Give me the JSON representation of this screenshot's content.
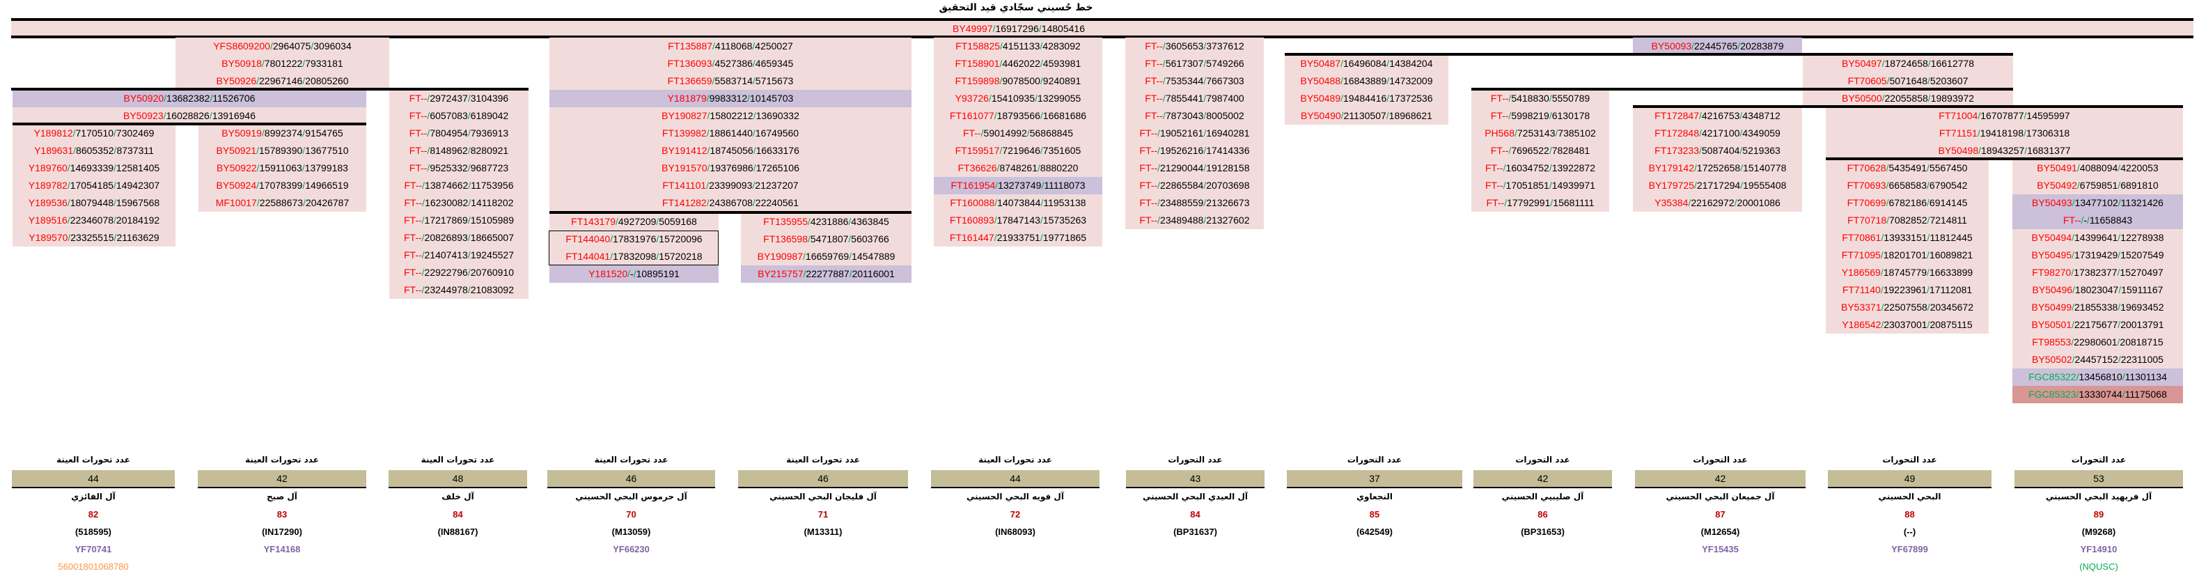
{
  "title": "خط حُسيني سجّادي قيد التحقيق",
  "top_row": {
    "snp": "BY49997",
    "pos1": "16917296",
    "pos2": "14805416"
  },
  "colors": {
    "pink": "#f2dcdb",
    "purple": "#ccc0da",
    "darkred": "#d99694",
    "snp_red": "#ff0000",
    "slash_green": "#00b050",
    "tan": "#c4bd97"
  },
  "blocks": [
    {
      "id": "A",
      "rows": [
        {
          "t": "YFS8609200/2964075/3096034"
        },
        {
          "t": "BY50918/7801222/7933181"
        },
        {
          "t": "BY50926/22967146/20805260"
        }
      ]
    },
    {
      "id": "B",
      "rows": [
        {
          "t": "BY50920/13682382/11526706",
          "bg": "purple"
        },
        {
          "t": "BY50923/16028826/13916946"
        }
      ]
    },
    {
      "id": "C",
      "rows": [
        {
          "t": "Y189812/7170510/7302469"
        },
        {
          "t": "Y189631/8605352/8737311"
        },
        {
          "t": "Y189760/14693339/12581405"
        },
        {
          "t": "Y189782/17054185/14942307"
        },
        {
          "t": "Y189536/18079448/15967568"
        },
        {
          "t": "Y189516/22346078/20184192"
        },
        {
          "t": "Y189570/23325515/21163629"
        }
      ]
    },
    {
      "id": "D",
      "rows": [
        {
          "t": "BY50919/8992374/9154765"
        },
        {
          "t": "BY50921/15789390/13677510"
        },
        {
          "t": "BY50922/15911063/13799183"
        },
        {
          "t": "BY50924/17078399/14966519"
        },
        {
          "t": "MF10017/22588673/20426787"
        }
      ]
    },
    {
      "id": "E",
      "rows": [
        {
          "t": "FT--/2972437/3104396"
        },
        {
          "t": "FT--/6057083/6189042"
        },
        {
          "t": "FT--/7804954/7936913"
        },
        {
          "t": "FT--/8148962/8280921"
        },
        {
          "t": "FT--/9525332/9687723"
        },
        {
          "t": "FT--/13874662/11753956"
        },
        {
          "t": "FT--/16230082/14118202"
        },
        {
          "t": "FT--/17217869/15105989"
        },
        {
          "t": "FT--/20826893/18665007"
        },
        {
          "t": "FT--/21407413/19245527"
        },
        {
          "t": "FT--/22922796/20760910"
        },
        {
          "t": "FT--/23244978/21083092"
        }
      ]
    },
    {
      "id": "F",
      "rows": [
        {
          "t": "FT135887/4118068/4250027"
        },
        {
          "t": "FT136093/4527386/4659345"
        },
        {
          "t": "FT136659/5583714/5715673"
        },
        {
          "t": "Y181879/9983312/10145703",
          "bg": "purple"
        },
        {
          "t": "BY190827/15802212/13690332"
        },
        {
          "t": "FT139982/18861440/16749560"
        },
        {
          "t": "BY191412/18745056/16633176"
        },
        {
          "t": "BY191570/19376986/17265106"
        },
        {
          "t": "FT141101/23399093/21237207"
        },
        {
          "t": "FT141282/24386708/22240561"
        }
      ]
    },
    {
      "id": "G",
      "rows": [
        {
          "t": "FT143179/4927209/5059168"
        },
        {
          "t": "FT144040/17831976/15720096"
        },
        {
          "t": "FT144041/17832098/15720218"
        },
        {
          "t": "Y181520/-/10895191",
          "bg": "purple"
        }
      ]
    },
    {
      "id": "H",
      "rows": [
        {
          "t": "FT135955/4231886/4363845"
        },
        {
          "t": "FT136598/5471807/5603766"
        },
        {
          "t": "BY190987/16659769/14547889"
        },
        {
          "t": "BY215757/22277887/20116001",
          "bg": "purple"
        }
      ]
    },
    {
      "id": "I",
      "rows": [
        {
          "t": "FT158825/4151133/4283092"
        },
        {
          "t": "FT158901/4462022/4593981"
        },
        {
          "t": "FT159898/9078500/9240891"
        },
        {
          "t": "Y93726/15410935/13299055"
        },
        {
          "t": "FT161077/18793566/16681686"
        },
        {
          "t": "FT--/59014992/56868845"
        },
        {
          "t": "FT159517/7219646/7351605"
        },
        {
          "t": "FT36626/8748261/8880220"
        },
        {
          "t": "FT161954/13273749/11118073",
          "bg": "purple"
        },
        {
          "t": "FT160088/14073844/11953138"
        },
        {
          "t": "FT160893/17847143/15735263"
        },
        {
          "t": "FT161447/21933751/19771865"
        }
      ]
    },
    {
      "id": "J",
      "rows": [
        {
          "t": "FT--/3605653/3737612"
        },
        {
          "t": "FT--/5617307/5749266"
        },
        {
          "t": "FT--/7535344/7667303"
        },
        {
          "t": "FT--/7855441/7987400"
        },
        {
          "t": "FT--/7873043/8005002"
        },
        {
          "t": "FT--/19052161/16940281"
        },
        {
          "t": "FT--/19526216/17414336"
        },
        {
          "t": "FT--/21290044/19128158"
        },
        {
          "t": "FT--/22865584/20703698"
        },
        {
          "t": "FT--/23488559/21326673"
        },
        {
          "t": "FT--/23489488/21327602"
        }
      ]
    },
    {
      "id": "K",
      "rows": [
        {
          "t": "BY50487/16496084/14384204"
        },
        {
          "t": "BY50488/16843889/14732009"
        },
        {
          "t": "BY50489/19484416/17372536"
        },
        {
          "t": "BY50490/21130507/18968621"
        }
      ]
    },
    {
      "id": "K2",
      "rows": [
        {
          "t": "BY50093/22445765/20283879",
          "bg": "purple"
        }
      ]
    },
    {
      "id": "L",
      "rows": [
        {
          "t": "FT--/5418830/5550789"
        },
        {
          "t": "FT--/5998219/6130178"
        },
        {
          "t": "PH568/7253143/7385102"
        },
        {
          "t": "FT--/7696522/7828481"
        },
        {
          "t": "FT--/16034752/13922872"
        },
        {
          "t": "FT--/17051851/14939971"
        },
        {
          "t": "FT--/17792991/15681111"
        }
      ]
    },
    {
      "id": "M",
      "rows": [
        {
          "t": "FT172847/4216753/4348712"
        },
        {
          "t": "FT172848/4217100/4349059"
        },
        {
          "t": "FT173233/5087404/5219363"
        },
        {
          "t": "BY179142/17252658/15140778"
        },
        {
          "t": "BY179725/21717294/19555408"
        },
        {
          "t": "Y35384/22162972/20001086"
        }
      ]
    },
    {
      "id": "N1",
      "rows": [
        {
          "t": "BY50497/18724658/16612778"
        },
        {
          "t": "FT70605/5071648/5203607"
        }
      ]
    },
    {
      "id": "N2",
      "rows": [
        {
          "t": "BY50500/22055858/19893972"
        }
      ]
    },
    {
      "id": "O",
      "rows": [
        {
          "t": "FT71004/16707877/14595997"
        },
        {
          "t": "FT71151/19418198/17306318"
        },
        {
          "t": "BY50498/18943257/16831377"
        }
      ]
    },
    {
      "id": "P",
      "rows": [
        {
          "t": "FT70628/5435491/5567450"
        },
        {
          "t": "FT70693/6658583/6790542"
        },
        {
          "t": "FT70699/6782186/6914145"
        },
        {
          "t": "FT70718/7082852/7214811"
        },
        {
          "t": "FT70861/13933151/11812445"
        },
        {
          "t": "FT71095/18201701/16089821"
        },
        {
          "t": "Y186569/18745779/16633899"
        },
        {
          "t": "FT71140/19223961/17112081"
        },
        {
          "t": "BY53371/22507558/20345672"
        },
        {
          "t": "Y186542/23037001/20875115"
        }
      ]
    },
    {
      "id": "Q",
      "rows": [
        {
          "t": "BY50491/4088094/4220053"
        },
        {
          "t": "BY50492/6759851/6891810"
        },
        {
          "t": "BY50493/13477102/11321426",
          "bg": "purple"
        },
        {
          "t": "FT--/-/11658843",
          "bg": "purple"
        },
        {
          "t": "BY50494/14399641/12278938"
        },
        {
          "t": "BY50495/17319429/15207549"
        },
        {
          "t": "FT98270/17382377/15270497"
        },
        {
          "t": "BY50496/18023047/15911167"
        },
        {
          "t": "BY50499/21855338/19693452"
        },
        {
          "t": "BY50501/22175677/20013791"
        },
        {
          "t": "FT98553/22980601/20818715"
        },
        {
          "t": "BY50502/24457152/22311005"
        },
        {
          "t": "FGC85322/13456810/11301134",
          "bg": "purple",
          "snp_color": "green"
        },
        {
          "t": "FGC85323/13330744/11175068",
          "bg": "darkred",
          "snp_color": "green"
        }
      ]
    }
  ],
  "groups": [
    {
      "label": "عدد تحورات العينة",
      "count": "44",
      "name": "آل الفائزي",
      "number": "82",
      "code": "(518595)",
      "yf": "YF70741",
      "extra": "56001801068780",
      "extra_color": "#f79646"
    },
    {
      "label": "عدد تحورات العينة",
      "count": "42",
      "name": "آل صبح",
      "number": "83",
      "code": "(IN17290)",
      "yf": "YF14168"
    },
    {
      "label": "عدد تحورات العينة",
      "count": "48",
      "name": "آل خلف",
      "number": "84",
      "code": "(IN88167)"
    },
    {
      "label": "عدد تحورات العينة",
      "count": "46",
      "name": "آل حرموس البحي الحسيني",
      "number": "70",
      "code": "(M13059)",
      "yf": "YF66230"
    },
    {
      "label": "عدد تحورات العينة",
      "count": "46",
      "name": "آل فليجان البحي الحسيني",
      "number": "71",
      "code": "(M13311)"
    },
    {
      "label": "عدد تحورات العينة",
      "count": "44",
      "name": "آل فويه البحي الحسيني",
      "number": "72",
      "code": "(IN68093)"
    },
    {
      "label": "عدد التحورات",
      "count": "43",
      "name": "آل العيدي البحي الحسيني",
      "number": "84",
      "code": "(BP31637)"
    },
    {
      "label": "عدد التحورات",
      "count": "37",
      "name": "النجعاوي",
      "number": "85",
      "code": "(642549)"
    },
    {
      "label": "عدد التحورات",
      "count": "42",
      "name": "آل صليبيي الحسيني",
      "number": "86",
      "code": "(BP31653)"
    },
    {
      "label": "عدد التحورات",
      "count": "42",
      "name": "آل جميعان البحي الحسيني",
      "number": "87",
      "code": "(M12654)",
      "yf": "YF15435"
    },
    {
      "label": "عدد التحورات",
      "count": "49",
      "name": "البحي الحسيني",
      "number": "88",
      "code": "(--)",
      "yf": "YF67899"
    },
    {
      "label": "عدد التحورات",
      "count": "53",
      "name": "آل فريهيد البحي الحسيني",
      "number": "89",
      "code": "(M9268)",
      "yf": "YF14910",
      "extra": "(NQUSC)",
      "extra_color": "#00b050"
    }
  ]
}
